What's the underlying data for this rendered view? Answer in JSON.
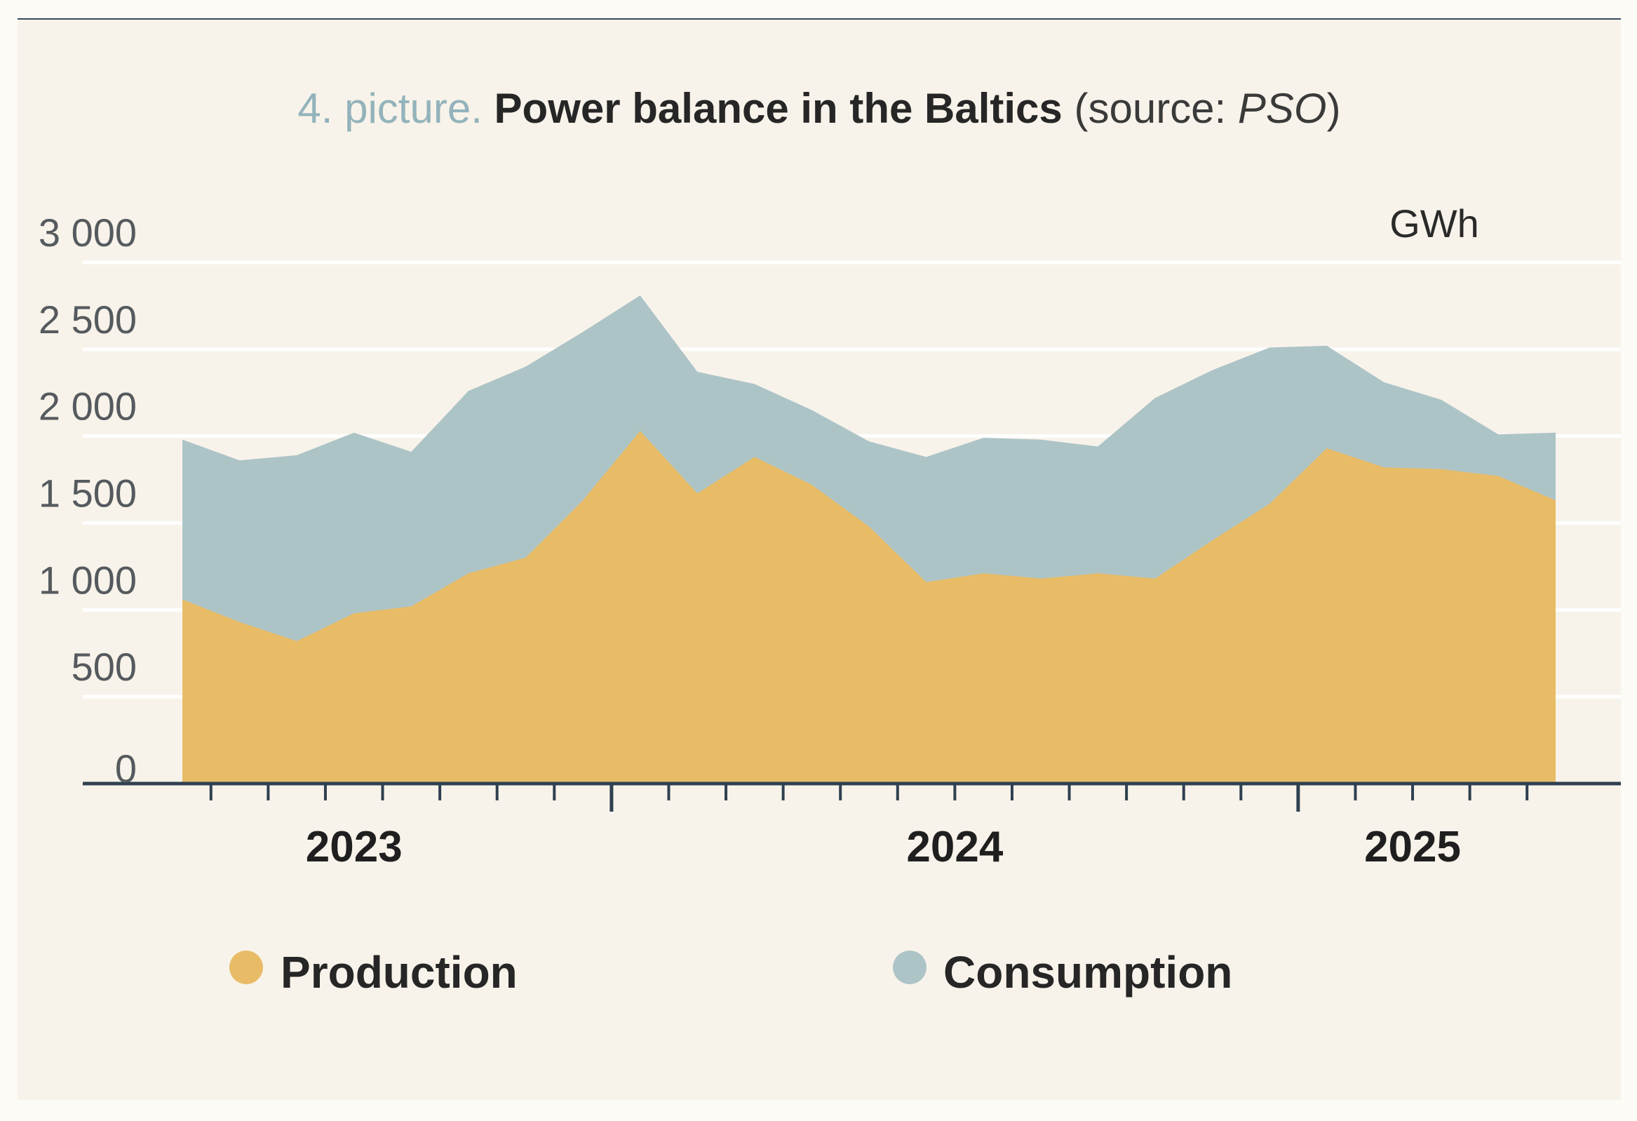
{
  "title": {
    "prefix": "4. picture.",
    "main": "Power balance in the Baltics",
    "source_open": "(source: ",
    "source_name": "PSO",
    "source_close": ")"
  },
  "chart_data": {
    "type": "area",
    "title": "Power balance in the Baltics",
    "unit": "GWh",
    "ylim": [
      0,
      3000
    ],
    "y_ticks": [
      {
        "value": 0,
        "label": "0"
      },
      {
        "value": 500,
        "label": "500"
      },
      {
        "value": 1000,
        "label": "1 000"
      },
      {
        "value": 1500,
        "label": "1 500"
      },
      {
        "value": 2000,
        "label": "2 000"
      },
      {
        "value": 2500,
        "label": "2 500"
      },
      {
        "value": 3000,
        "label": "3 000"
      }
    ],
    "x_labels": [
      {
        "label": "2023",
        "center_index": 3
      },
      {
        "label": "2024",
        "center_index": 13.5
      },
      {
        "label": "2025",
        "center_index": 21.5
      }
    ],
    "major_tick_indices": [
      7.5,
      19.5
    ],
    "series": [
      {
        "name": "Consumption",
        "color": "#adc4c7",
        "values": [
          1980,
          1860,
          1890,
          2020,
          1910,
          2260,
          2400,
          2600,
          2810,
          2370,
          2300,
          2150,
          1970,
          1880,
          1990,
          1980,
          1940,
          2220,
          2380,
          2510,
          2520,
          2310,
          2210,
          2010,
          2020
        ]
      },
      {
        "name": "Production",
        "color": "#e8bc67",
        "values": [
          1060,
          930,
          820,
          980,
          1020,
          1210,
          1300,
          1630,
          2030,
          1670,
          1880,
          1720,
          1480,
          1160,
          1210,
          1180,
          1210,
          1180,
          1400,
          1610,
          1930,
          1820,
          1810,
          1770,
          1630
        ]
      }
    ],
    "legend": [
      "Production",
      "Consumption"
    ],
    "grid": true,
    "legend_position": "bottom"
  }
}
